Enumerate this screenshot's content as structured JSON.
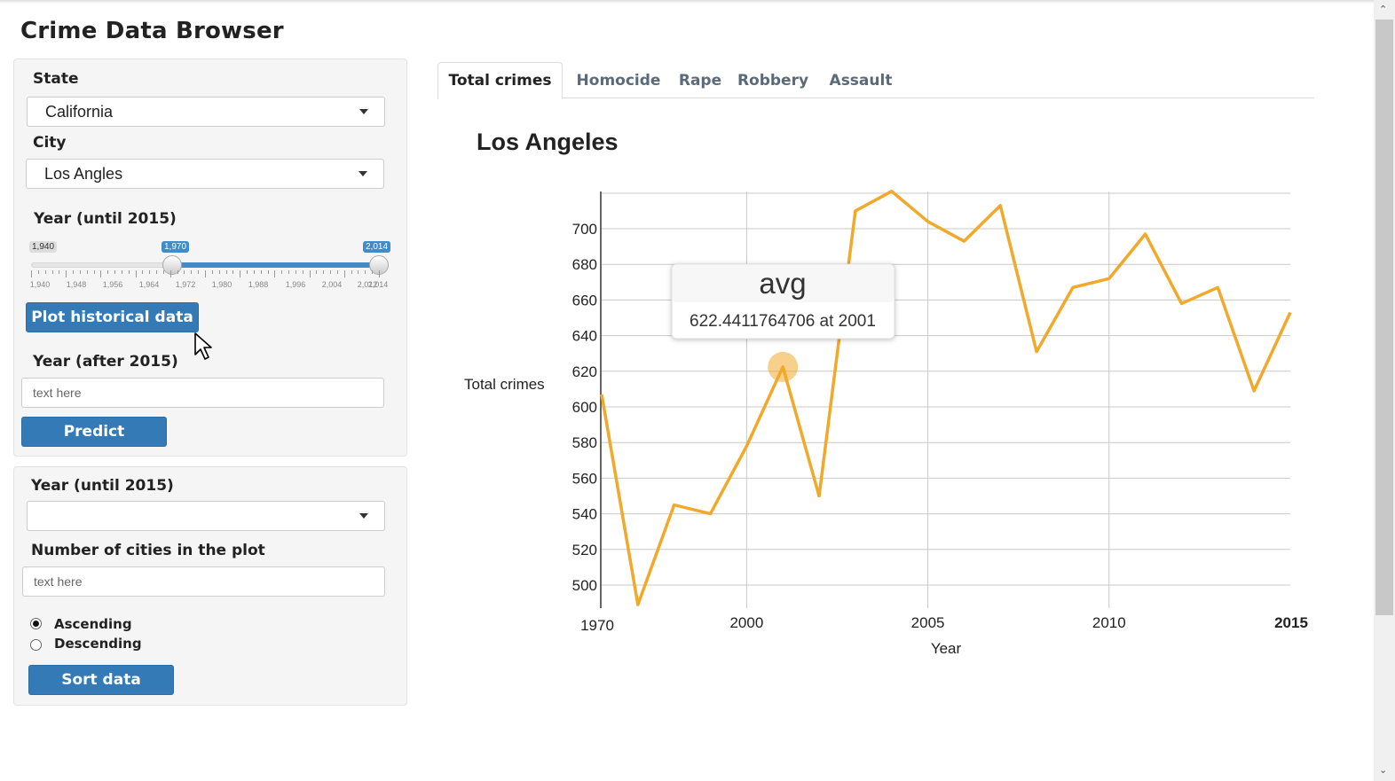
{
  "app": {
    "title": "Crime Data Browser"
  },
  "sidebar": {
    "state_label": "State",
    "state_value": "California",
    "city_label": "City",
    "city_value": "Los Angles",
    "year_label": "Year (until 2015)",
    "slider": {
      "min_label": "1,940",
      "low_label": "1,970",
      "high_label": "2,014",
      "low_fraction": 0.405,
      "high_fraction": 1.0,
      "ticks": [
        "1,940",
        "1,948",
        "1,956",
        "1,964",
        "1,972",
        "1,980",
        "1,988",
        "1,996",
        "2,004",
        "2,012",
        "2,014"
      ]
    },
    "plot_button": "Plot historical data",
    "after_label": "Year (after 2015)",
    "after_placeholder": "text here",
    "predict_button": "Predict"
  },
  "sidebar2": {
    "year_label": "Year (until 2015)",
    "year_value": "",
    "cities_label": "Number of cities in the plot",
    "cities_placeholder": "text here",
    "radio_ascending": "Ascending",
    "radio_descending": "Descending",
    "sort_button": "Sort data"
  },
  "tabs": [
    {
      "label": "Total crimes",
      "active": true
    },
    {
      "label": "Homocide",
      "active": false
    },
    {
      "label": "Rape",
      "active": false
    },
    {
      "label": "Robbery",
      "active": false
    },
    {
      "label": "Assault",
      "active": false
    }
  ],
  "tooltip": {
    "title": "avg",
    "text": "622.4411764706 at 2001"
  },
  "chart_data": {
    "type": "line",
    "title": "Los Angeles",
    "xlabel": "Year",
    "ylabel": "Total crimes",
    "x_tick_labels": [
      "1970",
      "2000",
      "2005",
      "2010",
      "2015"
    ],
    "y_ticks": [
      500,
      520,
      540,
      560,
      580,
      600,
      620,
      640,
      660,
      680,
      700
    ],
    "ylim": [
      490,
      722
    ],
    "series": [
      {
        "name": "avg",
        "color": "#f0a92b",
        "x": [
          1996,
          1997,
          1998,
          1999,
          2000,
          2001,
          2002,
          2003,
          2004,
          2005,
          2006,
          2007,
          2008,
          2009,
          2010,
          2011,
          2012,
          2013,
          2014,
          2015
        ],
        "y": [
          607,
          489,
          545,
          540,
          578,
          622.44,
          550,
          710,
          721,
          704,
          693,
          713,
          631,
          667,
          672,
          697,
          658,
          667,
          609,
          653
        ]
      }
    ]
  }
}
